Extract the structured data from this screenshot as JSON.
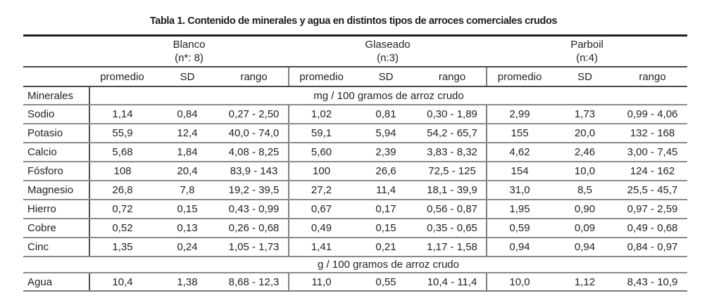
{
  "title": "Tabla 1. Contenido de minerales y agua en distintos tipos de arroces comerciales crudos",
  "table": {
    "groups": [
      {
        "name": "Blanco",
        "n": "(n*: 8)"
      },
      {
        "name": "Glaseado",
        "n": "(n:3)"
      },
      {
        "name": "Parboil",
        "n": "(n:4)"
      }
    ],
    "subheaders": [
      "promedio",
      "SD",
      "rango"
    ],
    "section_minerals": {
      "label": "Minerales",
      "unit": "mg / 100 gramos de arroz crudo"
    },
    "mineral_rows": [
      {
        "label": "Sodio",
        "values": [
          "1,14",
          "0,84",
          "0,27 - 2,50",
          "1,02",
          "0,81",
          "0,30 - 1,89",
          "2,99",
          "1,73",
          "0,99 - 4,06"
        ]
      },
      {
        "label": "Potasio",
        "values": [
          "55,9",
          "12,4",
          "40,0 - 74,0",
          "59,1",
          "5,94",
          "54,2 - 65,7",
          "155",
          "20,0",
          "132 - 168"
        ]
      },
      {
        "label": "Calcio",
        "values": [
          "5,68",
          "1,84",
          "4,08 - 8,25",
          "5,60",
          "2,39",
          "3,83 - 8,32",
          "4,62",
          "2,46",
          "3,00 - 7,45"
        ]
      },
      {
        "label": "Fósforo",
        "values": [
          "108",
          "20,4",
          "83,9 - 143",
          "100",
          "26,6",
          "72,5 - 125",
          "154",
          "10,0",
          "124 - 162"
        ]
      },
      {
        "label": "Magnesio",
        "values": [
          "26,8",
          "7,8",
          "19,2 - 39,5",
          "27,2",
          "11,4",
          "18,1 - 39,9",
          "31,0",
          "8,5",
          "25,5 - 45,7"
        ]
      },
      {
        "label": "Hierro",
        "values": [
          "0,72",
          "0,15",
          "0,43 - 0,99",
          "0,67",
          "0,17",
          "0,56 - 0,87",
          "1,95",
          "0,90",
          "0,97 - 2,59"
        ]
      },
      {
        "label": "Cobre",
        "values": [
          "0,52",
          "0,13",
          "0,26 - 0,68",
          "0,49",
          "0,15",
          "0,35 - 0,65",
          "0,59",
          "0,09",
          "0,49 - 0,68"
        ]
      },
      {
        "label": "Cinc",
        "values": [
          "1,35",
          "0,24",
          "1,05 - 1,73",
          "1,41",
          "0,21",
          "1,17 - 1,58",
          "0,94",
          "0,94",
          "0,84 - 0,97"
        ]
      }
    ],
    "section_water": {
      "unit": "g / 100 gramos de arroz crudo"
    },
    "water_row": {
      "label": "Agua",
      "values": [
        "10,4",
        "1,38",
        "8,68 - 12,3",
        "11,0",
        "0,55",
        "10,4 - 11,4",
        "10,0",
        "1,12",
        "8,43 - 10,9"
      ]
    }
  }
}
